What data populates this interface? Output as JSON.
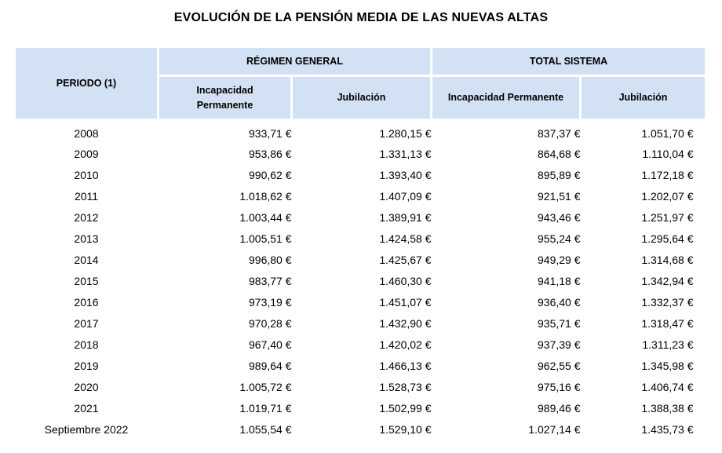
{
  "title": "EVOLUCIÓN DE LA PENSIÓN MEDIA DE LAS NUEVAS ALTAS",
  "colors": {
    "header_bg": "#D2E1F3",
    "text": "#000000"
  },
  "table": {
    "period_header": "PERIODO (1)",
    "groups": [
      {
        "label": "RÉGIMEN GENERAL",
        "subcolumns": [
          "Incapacidad Permanente",
          "Jubilación"
        ]
      },
      {
        "label": "TOTAL SISTEMA",
        "subcolumns": [
          "Incapacidad Permanente",
          "Jubilación"
        ]
      }
    ],
    "rows": [
      {
        "period": "2008",
        "values": [
          "933,71 €",
          "1.280,15 €",
          "837,37 €",
          "1.051,70 €"
        ]
      },
      {
        "period": "2009",
        "values": [
          "953,86 €",
          "1.331,13 €",
          "864,68 €",
          "1.110,04 €"
        ]
      },
      {
        "period": "2010",
        "values": [
          "990,62 €",
          "1.393,40 €",
          "895,89 €",
          "1.172,18 €"
        ]
      },
      {
        "period": "2011",
        "values": [
          "1.018,62 €",
          "1.407,09 €",
          "921,51 €",
          "1.202,07 €"
        ]
      },
      {
        "period": "2012",
        "values": [
          "1.003,44 €",
          "1.389,91 €",
          "943,46 €",
          "1.251,97 €"
        ]
      },
      {
        "period": "2013",
        "values": [
          "1.005,51 €",
          "1.424,58 €",
          "955,24 €",
          "1.295,64 €"
        ]
      },
      {
        "period": "2014",
        "values": [
          "996,80 €",
          "1.425,67 €",
          "949,29 €",
          "1.314,68 €"
        ]
      },
      {
        "period": "2015",
        "values": [
          "983,77 €",
          "1.460,30 €",
          "941,18 €",
          "1.342,94 €"
        ]
      },
      {
        "period": "2016",
        "values": [
          "973,19 €",
          "1.451,07 €",
          "936,40 €",
          "1.332,37 €"
        ]
      },
      {
        "period": "2017",
        "values": [
          "970,28 €",
          "1.432,90 €",
          "935,71 €",
          "1.318,47 €"
        ]
      },
      {
        "period": "2018",
        "values": [
          "967,40 €",
          "1.420,02 €",
          "937,39 €",
          "1.311,23 €"
        ]
      },
      {
        "period": "2019",
        "values": [
          "989,64 €",
          "1.466,13 €",
          "962,55 €",
          "1.345,98 €"
        ]
      },
      {
        "period": "2020",
        "values": [
          "1.005,72 €",
          "1.528,73 €",
          "975,16 €",
          "1.406,74 €"
        ]
      },
      {
        "period": "2021",
        "values": [
          "1.019,71 €",
          "1.502,99 €",
          "989,46 €",
          "1.388,38 €"
        ]
      },
      {
        "period": "Septiembre 2022",
        "values": [
          "1.055,54 €",
          "1.529,10 €",
          "1.027,14 €",
          "1.435,73 €"
        ]
      }
    ]
  }
}
